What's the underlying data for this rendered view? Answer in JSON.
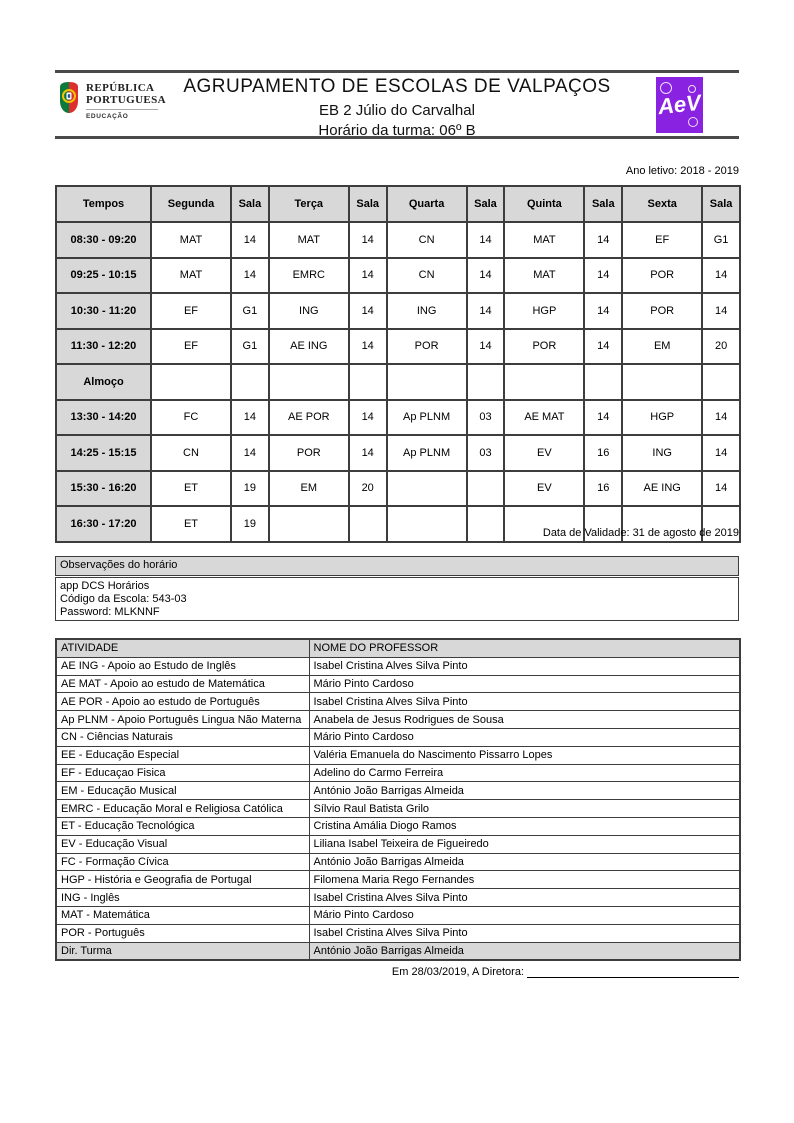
{
  "header": {
    "gov_logo": {
      "line1": "REPÚBLICA",
      "line2": "PORTUGUESA",
      "sub": "EDUCAÇÃO"
    },
    "school_group": "AGRUPAMENTO DE ESCOLAS DE VALPAÇOS",
    "school_name": "EB 2 Júlio do Carvalhal",
    "class_title": "Horário da turma:  06º B",
    "ae_logo_text": "AeV",
    "ae_logo_color": "#8a22e2"
  },
  "ano_letivo": "Ano letivo: 2018 - 2019",
  "data_validade": "Data de Validade: 31 de agosto de 2019",
  "timetable": {
    "columns": [
      "Tempos",
      "Segunda",
      "Sala",
      "Terça",
      "Sala",
      "Quarta",
      "Sala",
      "Quinta",
      "Sala",
      "Sexta",
      "Sala"
    ],
    "rows": [
      {
        "time": "08:30 - 09:20",
        "cells": [
          "MAT",
          "14",
          "MAT",
          "14",
          "CN",
          "14",
          "MAT",
          "14",
          "EF",
          "G1"
        ]
      },
      {
        "time": "09:25 - 10:15",
        "cells": [
          "MAT",
          "14",
          "EMRC",
          "14",
          "CN",
          "14",
          "MAT",
          "14",
          "POR",
          "14"
        ]
      },
      {
        "time": "10:30 - 11:20",
        "cells": [
          "EF",
          "G1",
          "ING",
          "14",
          "ING",
          "14",
          "HGP",
          "14",
          "POR",
          "14"
        ]
      },
      {
        "time": "11:30 - 12:20",
        "cells": [
          "EF",
          "G1",
          "AE ING",
          "14",
          "POR",
          "14",
          "POR",
          "14",
          "EM",
          "20"
        ]
      },
      {
        "time": "Almoço",
        "cells": [
          "",
          "",
          "",
          "",
          "",
          "",
          "",
          "",
          "",
          ""
        ]
      },
      {
        "time": "13:30 - 14:20",
        "cells": [
          "FC",
          "14",
          "AE POR",
          "14",
          "Ap PLNM",
          "03",
          "AE MAT",
          "14",
          "HGP",
          "14"
        ]
      },
      {
        "time": "14:25 - 15:15",
        "cells": [
          "CN",
          "14",
          "POR",
          "14",
          "Ap PLNM",
          "03",
          "EV",
          "16",
          "ING",
          "14"
        ]
      },
      {
        "time": "15:30 - 16:20",
        "cells": [
          "ET",
          "19",
          "EM",
          "20",
          "",
          "",
          "EV",
          "16",
          "AE ING",
          "14"
        ]
      },
      {
        "time": "16:30 - 17:20",
        "cells": [
          "ET",
          "19",
          "",
          "",
          "",
          "",
          "",
          "",
          "",
          ""
        ]
      }
    ]
  },
  "observacoes": {
    "title": "Observações do horário",
    "lines": [
      "app DCS  Horários",
      "Código da Escola: 543-03",
      "Password:   MLKNNF"
    ]
  },
  "activities": {
    "headers": [
      "ATIVIDADE",
      "NOME DO  PROFESSOR"
    ],
    "rows": [
      [
        "AE ING - Apoio ao Estudo de Inglês",
        "Isabel Cristina Alves Silva Pinto"
      ],
      [
        "AE MAT - Apoio ao estudo de Matemática",
        "Mário Pinto Cardoso"
      ],
      [
        "AE POR - Apoio ao estudo de Português",
        "Isabel Cristina Alves Silva Pinto"
      ],
      [
        "Ap PLNM - Apoio Português Lingua Não Materna",
        "Anabela de Jesus Rodrigues de Sousa"
      ],
      [
        "CN - Ciências Naturais",
        "Mário Pinto Cardoso"
      ],
      [
        "EE - Educação Especial",
        "Valéria Emanuela do Nascimento Pissarro Lopes"
      ],
      [
        "EF - Educaçao Fisica",
        "Adelino do Carmo Ferreira"
      ],
      [
        "EM - Educação Musical",
        "António João Barrigas Almeida"
      ],
      [
        "EMRC - Educação Moral  e Religiosa Católica",
        "Sílvio Raul Batista Grilo"
      ],
      [
        "ET - Educação Tecnológica",
        "Cristina Amália Diogo Ramos"
      ],
      [
        "EV - Educação Visual",
        "Liliana Isabel Teixeira de Figueiredo"
      ],
      [
        "FC - Formação Cívica",
        "António João Barrigas Almeida"
      ],
      [
        "HGP - História e Geografia de Portugal",
        "Filomena Maria Rego Fernandes"
      ],
      [
        "ING - Inglês",
        "Isabel Cristina Alves Silva Pinto"
      ],
      [
        "MAT - Matemática",
        "Mário Pinto Cardoso"
      ],
      [
        "POR - Português",
        "Isabel Cristina Alves Silva Pinto"
      ]
    ],
    "footer_row": [
      "Dir. Turma",
      "António João Barrigas Almeida"
    ]
  },
  "footer": {
    "signature_label": "Em 28/03/2019, A Diretora:"
  }
}
